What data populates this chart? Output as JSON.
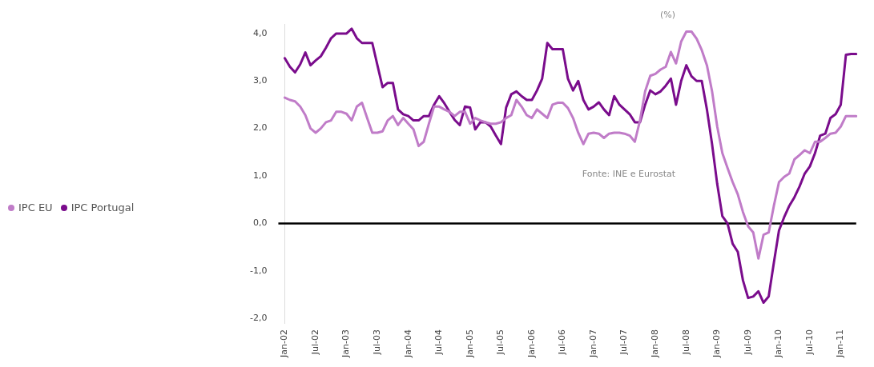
{
  "chart_data": {
    "type": "line",
    "categories": [
      "Jan-02",
      null,
      null,
      null,
      null,
      null,
      "Jul-02",
      null,
      null,
      null,
      null,
      null,
      "Jan-03",
      null,
      null,
      null,
      null,
      null,
      "Jul-03",
      null,
      null,
      null,
      null,
      null,
      "Jan-04",
      null,
      null,
      null,
      null,
      null,
      "Jul-04",
      null,
      null,
      null,
      null,
      null,
      "Jan-05",
      null,
      null,
      null,
      null,
      null,
      "Jul-05",
      null,
      null,
      null,
      null,
      null,
      "Jan-06",
      null,
      null,
      null,
      null,
      null,
      "Jul-06",
      null,
      null,
      null,
      null,
      null,
      "Jan-07",
      null,
      null,
      null,
      null,
      null,
      "Jul-07",
      null,
      null,
      null,
      null,
      null,
      "Jan-08",
      null,
      null,
      null,
      null,
      null,
      "Jul-08",
      null,
      null,
      null,
      null,
      null,
      "Jan-09",
      null,
      null,
      null,
      null,
      null,
      "Jul-09",
      null,
      null,
      null,
      null,
      null,
      "Jan-10",
      null,
      null,
      null,
      null,
      null,
      "Jul-10",
      null,
      null,
      null,
      null,
      null,
      "Jan-11",
      null,
      null,
      null
    ],
    "series": [
      {
        "name": "IPC EU",
        "color": "#c07cc8",
        "values": [
          2.65,
          2.6,
          2.57,
          2.46,
          2.28,
          2.0,
          1.91,
          2.0,
          2.13,
          2.17,
          2.35,
          2.35,
          2.31,
          2.17,
          2.46,
          2.54,
          2.22,
          1.91,
          1.91,
          1.94,
          2.17,
          2.26,
          2.07,
          2.22,
          2.1,
          1.98,
          1.63,
          1.72,
          2.1,
          2.46,
          2.46,
          2.4,
          2.35,
          2.26,
          2.35,
          2.35,
          2.1,
          2.22,
          2.17,
          2.13,
          2.1,
          2.1,
          2.13,
          2.22,
          2.28,
          2.6,
          2.46,
          2.28,
          2.22,
          2.4,
          2.31,
          2.22,
          2.5,
          2.54,
          2.54,
          2.43,
          2.22,
          1.91,
          1.67,
          1.89,
          1.91,
          1.89,
          1.8,
          1.89,
          1.91,
          1.91,
          1.89,
          1.85,
          1.72,
          2.17,
          2.78,
          3.11,
          3.15,
          3.24,
          3.3,
          3.61,
          3.37,
          3.83,
          4.04,
          4.04,
          3.89,
          3.65,
          3.33,
          2.78,
          2.04,
          1.48,
          1.17,
          0.87,
          0.61,
          0.24,
          -0.06,
          -0.19,
          -0.74,
          -0.24,
          -0.19,
          0.37,
          0.87,
          0.98,
          1.05,
          1.35,
          1.44,
          1.54,
          1.48,
          1.72,
          1.72,
          1.8,
          1.89,
          1.91,
          2.04,
          2.26,
          2.26,
          2.26
        ]
      },
      {
        "name": "IPC Portugal",
        "color": "#7a0c8c",
        "values": [
          3.48,
          3.3,
          3.18,
          3.35,
          3.6,
          3.33,
          3.43,
          3.52,
          3.7,
          3.9,
          4.0,
          4.0,
          4.0,
          4.1,
          3.9,
          3.8,
          3.8,
          3.8,
          3.33,
          2.87,
          2.96,
          2.96,
          2.4,
          2.3,
          2.26,
          2.17,
          2.17,
          2.26,
          2.26,
          2.5,
          2.68,
          2.53,
          2.35,
          2.18,
          2.07,
          2.46,
          2.44,
          1.98,
          2.13,
          2.13,
          2.04,
          1.85,
          1.67,
          2.44,
          2.72,
          2.78,
          2.68,
          2.6,
          2.6,
          2.8,
          3.05,
          3.8,
          3.67,
          3.67,
          3.67,
          3.05,
          2.8,
          3.0,
          2.6,
          2.4,
          2.46,
          2.55,
          2.4,
          2.28,
          2.68,
          2.5,
          2.4,
          2.3,
          2.13,
          2.13,
          2.5,
          2.8,
          2.72,
          2.78,
          2.9,
          3.05,
          2.5,
          3.0,
          3.33,
          3.1,
          3.0,
          3.0,
          2.4,
          1.67,
          0.83,
          0.15,
          0.0,
          -0.43,
          -0.6,
          -1.2,
          -1.57,
          -1.54,
          -1.43,
          -1.67,
          -1.54,
          -0.83,
          -0.15,
          0.13,
          0.37,
          0.55,
          0.78,
          1.05,
          1.2,
          1.48,
          1.85,
          1.89,
          2.22,
          2.3,
          2.5,
          3.55,
          3.57,
          3.57
        ]
      }
    ],
    "ylim": [
      -2.1,
      4.2
    ],
    "yticks": [
      {
        "value": -2,
        "label": "-2,0"
      },
      {
        "value": -1,
        "label": "-1,0"
      },
      {
        "value": 0,
        "label": "0,0"
      },
      {
        "value": 1,
        "label": "1,0"
      },
      {
        "value": 2,
        "label": "2,0"
      },
      {
        "value": 3,
        "label": "3,0"
      },
      {
        "value": 4,
        "label": "4,0"
      }
    ],
    "ref_lines": [
      {
        "axis": "y",
        "value": 0,
        "color": "#000000"
      }
    ],
    "annotations": [
      "(%)",
      "Fonte: INE e Eurostat"
    ],
    "legend": "left",
    "grid": false,
    "marker": "none",
    "line_style": "solid"
  }
}
